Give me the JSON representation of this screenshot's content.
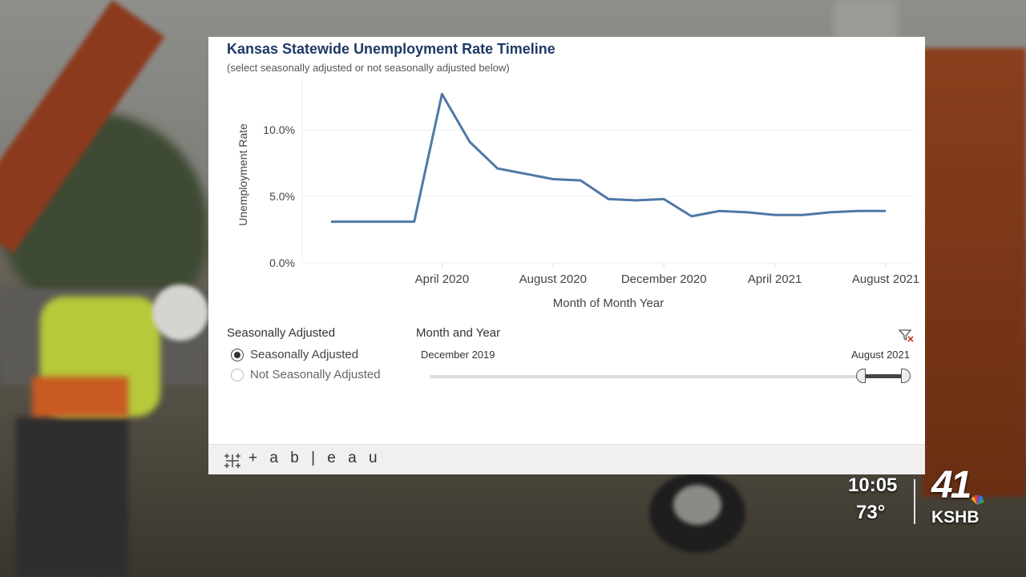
{
  "chart_data": {
    "type": "line",
    "title": "Kansas Statewide Unemployment Rate Timeline",
    "subtitle": "(select seasonally adjusted or not seasonally adjusted below)",
    "xlabel": "Month of Month Year",
    "ylabel": "Unemployment Rate",
    "x": [
      "2019-12",
      "2020-01",
      "2020-02",
      "2020-03",
      "2020-04",
      "2020-05",
      "2020-06",
      "2020-07",
      "2020-08",
      "2020-09",
      "2020-10",
      "2020-11",
      "2020-12",
      "2021-01",
      "2021-02",
      "2021-03",
      "2021-04",
      "2021-05",
      "2021-06",
      "2021-07",
      "2021-08"
    ],
    "series": [
      {
        "values": [
          3.1,
          3.1,
          3.1,
          3.1,
          12.7,
          9.1,
          7.1,
          6.7,
          6.3,
          6.2,
          4.8,
          4.7,
          4.8,
          3.5,
          3.9,
          3.8,
          3.6,
          3.6,
          3.8,
          3.9,
          3.9
        ]
      }
    ],
    "x_ticks": [
      {
        "label": "April 2020",
        "index": 4
      },
      {
        "label": "August 2020",
        "index": 8
      },
      {
        "label": "December 2020",
        "index": 12
      },
      {
        "label": "April 2021",
        "index": 16
      },
      {
        "label": "August 2021",
        "index": 20
      }
    ],
    "y_ticks": [
      {
        "label": "0.0%",
        "value": 0
      },
      {
        "label": "5.0%",
        "value": 5
      },
      {
        "label": "10.0%",
        "value": 10
      }
    ],
    "ylim": [
      0,
      13.5
    ],
    "grid": true,
    "line_color": "#4e79a7"
  },
  "filters": {
    "seasonal_header": "Seasonally Adjusted",
    "options": [
      "Seasonally Adjusted",
      "Not Seasonally Adjusted"
    ],
    "selected": "Seasonally Adjusted",
    "range_header": "Month and Year",
    "range_start": "December 2019",
    "range_end": "August 2021"
  },
  "footer": {
    "brand": "+ a b | e a u"
  },
  "overlay": {
    "time": "10:05",
    "temperature": "73°",
    "channel_number": "41",
    "call_sign": "KSHB"
  }
}
